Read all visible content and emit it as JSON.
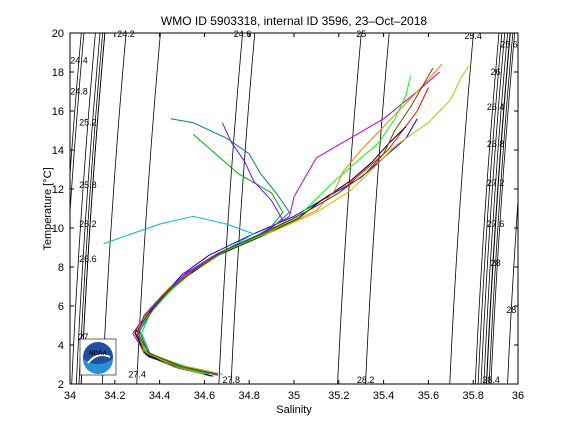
{
  "chart_data": {
    "type": "line",
    "title": "WMO ID 5903318, internal ID 3596, 23–Oct–2018",
    "xlabel": "Salinity",
    "ylabel": "Temperature [°C]",
    "xlim": [
      34,
      36
    ],
    "ylim": [
      2,
      20
    ],
    "x_ticks": [
      "34",
      "34.2",
      "34.4",
      "34.6",
      "34.8",
      "35",
      "35.2",
      "35.4",
      "35.6",
      "35.8",
      "36"
    ],
    "y_ticks": [
      "2",
      "4",
      "6",
      "8",
      "10",
      "12",
      "14",
      "16",
      "18",
      "20"
    ],
    "grid": false,
    "legend": "none",
    "density_contours": [
      {
        "label": "24.2",
        "label_at": [
          34.25,
          19.95
        ]
      },
      {
        "label": "24.4",
        "label_at": [
          34.04,
          18.6
        ]
      },
      {
        "label": "24.6",
        "label_at": [
          34.77,
          19.95
        ]
      },
      {
        "label": "24.8",
        "label_at": [
          34.04,
          17.0
        ]
      },
      {
        "label": "25",
        "label_at": [
          35.3,
          19.95
        ]
      },
      {
        "label": "25.2",
        "label_at": [
          34.08,
          15.4
        ]
      },
      {
        "label": "25.4",
        "label_at": [
          35.8,
          19.85
        ]
      },
      {
        "label": "25.6",
        "label_at": [
          35.96,
          19.4
        ]
      },
      {
        "label": "25.8",
        "label_at": [
          34.08,
          12.2
        ]
      },
      {
        "label": "26",
        "label_at": [
          35.9,
          18.0
        ]
      },
      {
        "label": "26.2",
        "label_at": [
          34.08,
          10.2
        ]
      },
      {
        "label": "26.4",
        "label_at": [
          35.9,
          16.2
        ]
      },
      {
        "label": "26.6",
        "label_at": [
          34.08,
          8.4
        ]
      },
      {
        "label": "26.8",
        "label_at": [
          35.9,
          14.3
        ]
      },
      {
        "label": "27",
        "label_at": [
          34.06,
          4.4
        ]
      },
      {
        "label": "27.2",
        "label_at": [
          35.9,
          12.3
        ]
      },
      {
        "label": "27.4",
        "label_at": [
          34.3,
          2.5
        ]
      },
      {
        "label": "27.6",
        "label_at": [
          35.9,
          10.2
        ]
      },
      {
        "label": "27.8",
        "label_at": [
          34.72,
          2.2
        ]
      },
      {
        "label": "28",
        "label_at": [
          35.9,
          8.2
        ]
      },
      {
        "label": "28.2",
        "label_at": [
          35.32,
          2.2
        ]
      },
      {
        "label": "28.4",
        "label_at": [
          35.88,
          2.2
        ]
      },
      {
        "label": "28",
        "label_at": [
          35.97,
          5.8
        ]
      }
    ],
    "series": [
      {
        "color": "#0000ff",
        "values": [
          [
            34.63,
            2.4
          ],
          [
            34.5,
            2.8
          ],
          [
            34.35,
            3.4
          ],
          [
            34.3,
            4.5
          ],
          [
            34.34,
            5.6
          ],
          [
            34.42,
            6.6
          ],
          [
            34.5,
            7.6
          ],
          [
            34.62,
            8.6
          ],
          [
            34.8,
            9.6
          ],
          [
            35.0,
            10.6
          ],
          [
            35.15,
            11.6
          ],
          [
            35.3,
            12.6
          ],
          [
            35.4,
            13.6
          ],
          [
            35.5,
            14.6
          ],
          [
            35.55,
            15.6
          ]
        ]
      },
      {
        "color": "#ff0000",
        "values": [
          [
            34.65,
            2.5
          ],
          [
            34.48,
            2.9
          ],
          [
            34.33,
            3.6
          ],
          [
            34.29,
            4.7
          ],
          [
            34.36,
            5.8
          ],
          [
            34.44,
            6.8
          ],
          [
            34.54,
            7.8
          ],
          [
            34.68,
            8.8
          ],
          [
            34.9,
            9.9
          ],
          [
            35.05,
            10.8
          ],
          [
            35.2,
            11.8
          ],
          [
            35.3,
            12.8
          ],
          [
            35.42,
            14.0
          ],
          [
            35.55,
            16.0
          ],
          [
            35.6,
            17.2
          ]
        ]
      },
      {
        "color": "#00aa00",
        "values": [
          [
            34.6,
            2.6
          ],
          [
            34.46,
            3.0
          ],
          [
            34.32,
            3.8
          ],
          [
            34.3,
            4.9
          ],
          [
            34.38,
            6.0
          ],
          [
            34.46,
            7.0
          ],
          [
            34.58,
            8.0
          ],
          [
            34.72,
            9.0
          ],
          [
            34.88,
            9.8
          ],
          [
            34.95,
            10.8
          ],
          [
            34.9,
            11.8
          ],
          [
            34.75,
            12.8
          ],
          [
            34.65,
            13.8
          ],
          [
            34.55,
            14.8
          ]
        ]
      },
      {
        "color": "#00bfbf",
        "values": [
          [
            34.68,
            2.5
          ],
          [
            34.52,
            2.9
          ],
          [
            34.36,
            3.5
          ],
          [
            34.32,
            4.6
          ],
          [
            34.36,
            5.7
          ],
          [
            34.45,
            6.8
          ],
          [
            34.56,
            7.9
          ],
          [
            34.7,
            8.9
          ],
          [
            34.82,
            9.7
          ],
          [
            34.7,
            10.2
          ],
          [
            34.55,
            10.6
          ],
          [
            34.4,
            10.2
          ],
          [
            34.25,
            9.6
          ],
          [
            34.15,
            9.2
          ]
        ]
      },
      {
        "color": "#bf00bf",
        "values": [
          [
            34.62,
            2.45
          ],
          [
            34.47,
            2.85
          ],
          [
            34.34,
            3.5
          ],
          [
            34.28,
            4.6
          ],
          [
            34.35,
            5.7
          ],
          [
            34.43,
            6.7
          ],
          [
            34.52,
            7.7
          ],
          [
            34.66,
            8.7
          ],
          [
            34.85,
            9.7
          ],
          [
            34.98,
            10.6
          ],
          [
            35.0,
            11.6
          ],
          [
            35.05,
            12.6
          ],
          [
            35.1,
            13.6
          ],
          [
            35.25,
            14.6
          ],
          [
            35.4,
            15.6
          ],
          [
            35.55,
            17.0
          ],
          [
            35.65,
            18.0
          ]
        ]
      },
      {
        "color": "#bfbf00",
        "values": [
          [
            34.66,
            2.55
          ],
          [
            34.5,
            2.95
          ],
          [
            34.35,
            3.6
          ],
          [
            34.31,
            4.8
          ],
          [
            34.37,
            5.9
          ],
          [
            34.45,
            6.9
          ],
          [
            34.56,
            7.9
          ],
          [
            34.7,
            8.9
          ],
          [
            34.9,
            9.8
          ],
          [
            35.1,
            10.8
          ],
          [
            35.25,
            11.9
          ],
          [
            35.35,
            13.0
          ],
          [
            35.45,
            14.2
          ],
          [
            35.6,
            15.4
          ],
          [
            35.7,
            16.6
          ],
          [
            35.75,
            17.8
          ],
          [
            35.78,
            18.3
          ]
        ]
      },
      {
        "color": "#000000",
        "values": [
          [
            34.64,
            2.4
          ],
          [
            34.49,
            2.8
          ],
          [
            34.34,
            3.5
          ],
          [
            34.29,
            4.6
          ],
          [
            34.35,
            5.6
          ],
          [
            34.43,
            6.6
          ],
          [
            34.53,
            7.6
          ],
          [
            34.66,
            8.6
          ],
          [
            34.86,
            9.6
          ],
          [
            35.02,
            10.5
          ],
          [
            35.12,
            11.4
          ],
          [
            35.25,
            12.4
          ],
          [
            35.35,
            13.4
          ],
          [
            35.42,
            14.3
          ],
          [
            35.5,
            15.2
          ]
        ]
      },
      {
        "color": "#ff7f00",
        "values": [
          [
            34.6,
            2.5
          ],
          [
            34.46,
            2.9
          ],
          [
            34.33,
            3.7
          ],
          [
            34.3,
            4.8
          ],
          [
            34.36,
            5.9
          ],
          [
            34.44,
            6.9
          ],
          [
            34.55,
            7.9
          ],
          [
            34.7,
            8.9
          ],
          [
            34.92,
            9.9
          ],
          [
            35.1,
            10.9
          ],
          [
            35.18,
            11.9
          ],
          [
            35.22,
            12.9
          ],
          [
            35.3,
            14.0
          ],
          [
            35.4,
            15.2
          ],
          [
            35.5,
            16.4
          ],
          [
            35.6,
            17.6
          ],
          [
            35.66,
            18.4
          ]
        ]
      },
      {
        "color": "#7f00ff",
        "values": [
          [
            34.66,
            2.45
          ],
          [
            34.51,
            2.85
          ],
          [
            34.36,
            3.5
          ],
          [
            34.3,
            4.5
          ],
          [
            34.33,
            5.5
          ],
          [
            34.41,
            6.5
          ],
          [
            34.5,
            7.5
          ],
          [
            34.63,
            8.5
          ],
          [
            34.82,
            9.5
          ],
          [
            34.95,
            10.4
          ],
          [
            34.9,
            11.4
          ],
          [
            34.82,
            12.4
          ],
          [
            34.78,
            13.4
          ],
          [
            34.72,
            14.4
          ],
          [
            34.68,
            15.4
          ]
        ]
      },
      {
        "color": "#00ff00",
        "values": [
          [
            34.62,
            2.5
          ],
          [
            34.48,
            2.9
          ],
          [
            34.34,
            3.6
          ],
          [
            34.3,
            4.7
          ],
          [
            34.37,
            5.8
          ],
          [
            34.45,
            6.8
          ],
          [
            34.55,
            7.8
          ],
          [
            34.69,
            8.8
          ],
          [
            34.89,
            9.8
          ],
          [
            35.02,
            10.6
          ],
          [
            35.1,
            11.5
          ],
          [
            35.18,
            12.4
          ],
          [
            35.28,
            13.4
          ],
          [
            35.38,
            14.4
          ],
          [
            35.45,
            15.6
          ],
          [
            35.5,
            16.8
          ],
          [
            35.52,
            17.8
          ]
        ]
      },
      {
        "color": "#007f7f",
        "values": [
          [
            34.64,
            2.5
          ],
          [
            34.49,
            2.9
          ],
          [
            34.35,
            3.6
          ],
          [
            34.31,
            4.7
          ],
          [
            34.37,
            5.8
          ],
          [
            34.45,
            6.9
          ],
          [
            34.56,
            7.9
          ],
          [
            34.7,
            8.9
          ],
          [
            34.88,
            9.8
          ],
          [
            34.98,
            10.8
          ],
          [
            34.92,
            11.8
          ],
          [
            34.85,
            12.8
          ],
          [
            34.8,
            13.8
          ],
          [
            34.7,
            14.6
          ],
          [
            34.55,
            15.4
          ],
          [
            34.45,
            15.6
          ]
        ]
      },
      {
        "color": "#7f3f00",
        "values": [
          [
            34.66,
            2.5
          ],
          [
            34.5,
            2.9
          ],
          [
            34.35,
            3.6
          ],
          [
            34.3,
            4.7
          ],
          [
            34.36,
            5.8
          ],
          [
            34.44,
            6.8
          ],
          [
            34.55,
            7.8
          ],
          [
            34.68,
            8.8
          ],
          [
            34.87,
            9.8
          ],
          [
            35.05,
            10.8
          ],
          [
            35.2,
            11.8
          ],
          [
            35.32,
            12.8
          ],
          [
            35.4,
            13.8
          ],
          [
            35.45,
            15.0
          ],
          [
            35.52,
            16.2
          ],
          [
            35.58,
            17.4
          ],
          [
            35.62,
            18.2
          ]
        ]
      }
    ]
  },
  "logo": {
    "text": "NOAA"
  }
}
